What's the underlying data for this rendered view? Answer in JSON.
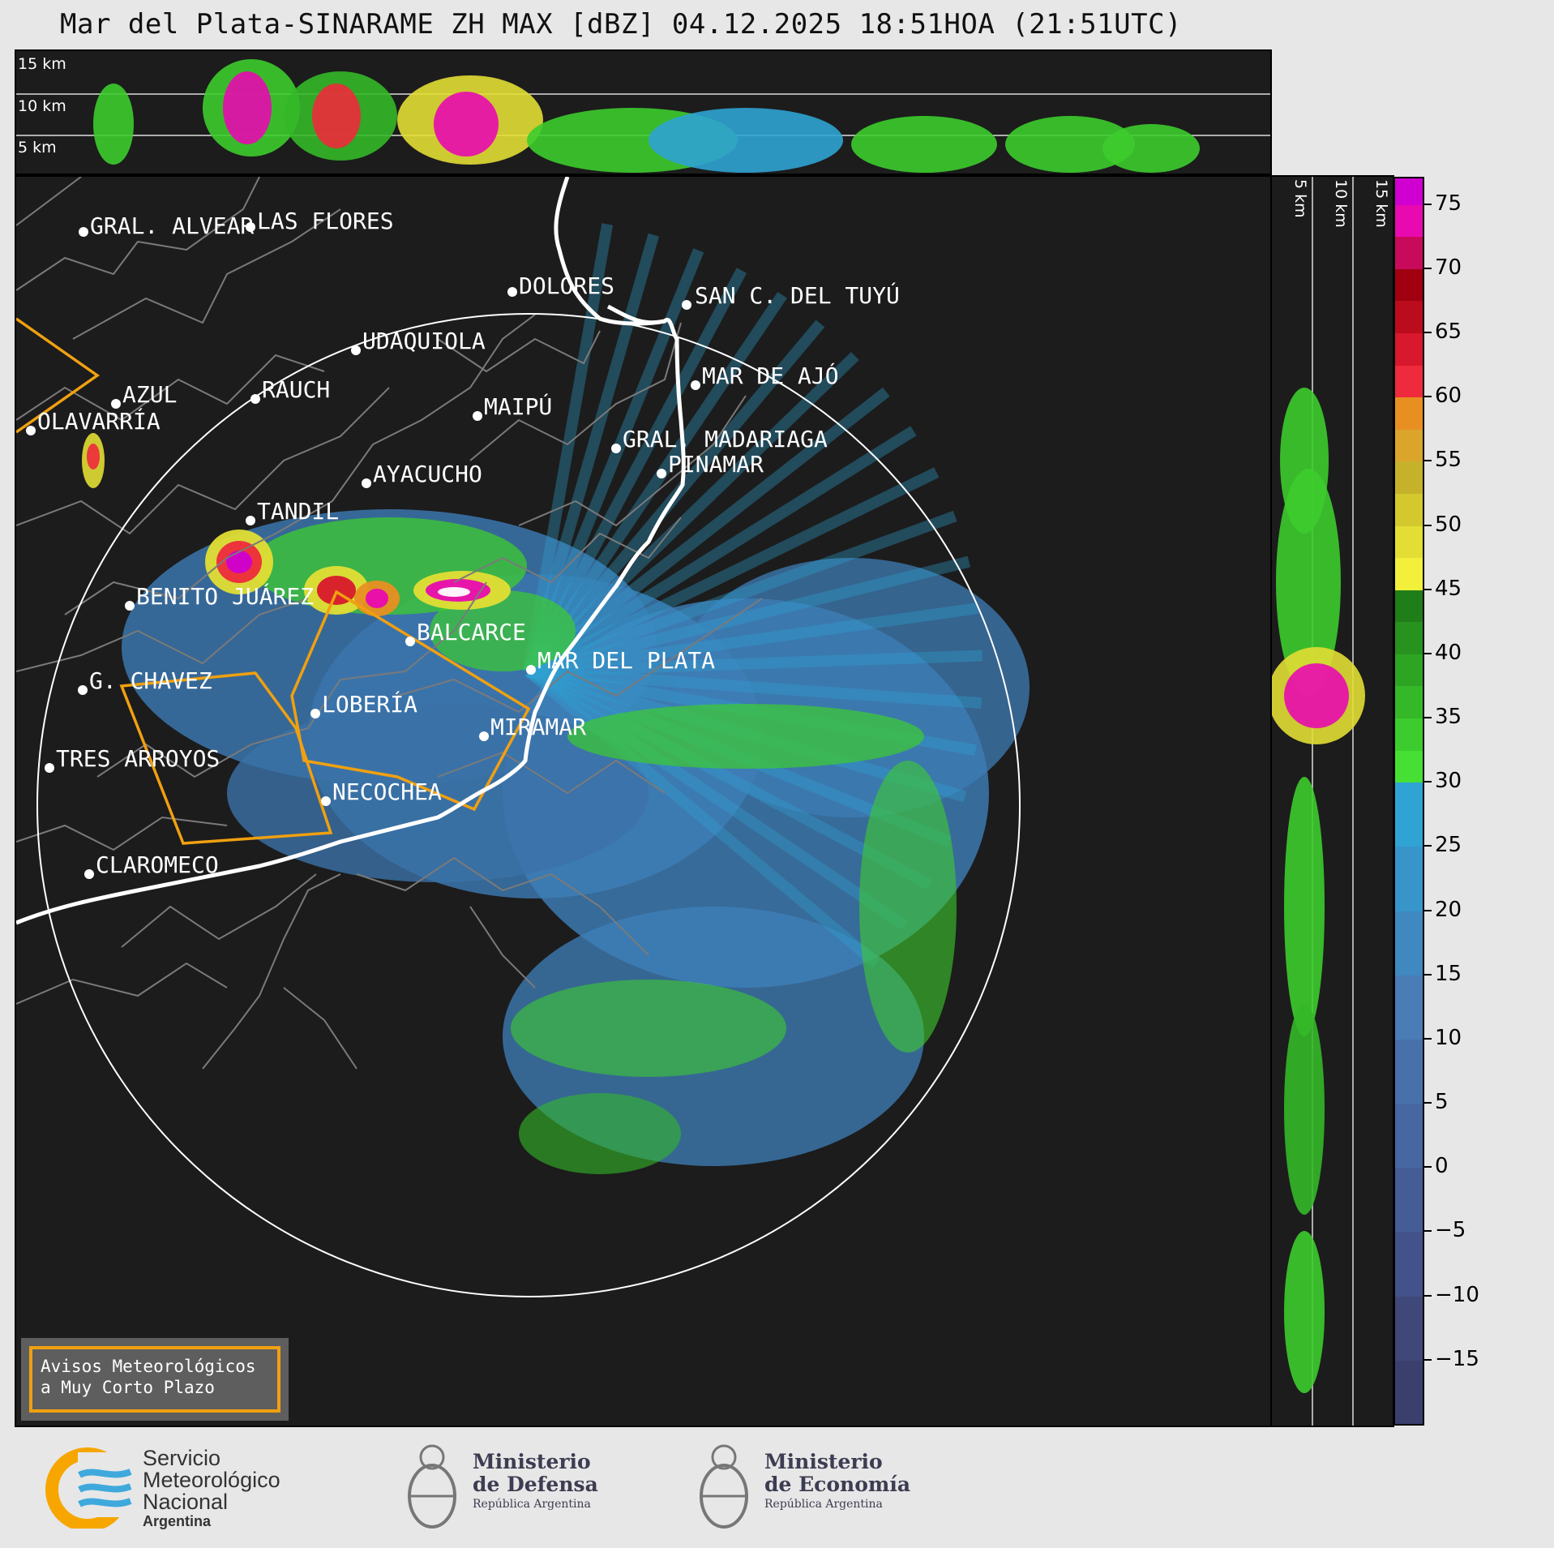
{
  "title": "Mar del Plata-SINARAME ZH MAX [dBZ] 04.12.2025 18:51HOA (21:51UTC)",
  "top_panel": {
    "height_labels": [
      "15 km",
      "10 km",
      "5 km"
    ]
  },
  "side_panel": {
    "height_labels": [
      "5 km",
      "10 km",
      "15 km"
    ]
  },
  "cities": [
    {
      "name": "GRAL. ALVEAR"
    },
    {
      "name": "LAS FLORES"
    },
    {
      "name": "DOLORES"
    },
    {
      "name": "SAN C. DEL TUYÚ"
    },
    {
      "name": "UDAQUIOLA"
    },
    {
      "name": "MAR DE AJÓ"
    },
    {
      "name": "AZUL"
    },
    {
      "name": "RAUCH"
    },
    {
      "name": "MAIPÚ"
    },
    {
      "name": "OLAVARRÍA"
    },
    {
      "name": "GRAL. MADARIAGA"
    },
    {
      "name": "PINAMAR"
    },
    {
      "name": "AYACUCHO"
    },
    {
      "name": "TANDIL"
    },
    {
      "name": "BENITO JUÁREZ"
    },
    {
      "name": "BALCARCE"
    },
    {
      "name": "MAR DEL PLATA"
    },
    {
      "name": "G. CHAVEZ"
    },
    {
      "name": "LOBERÍA"
    },
    {
      "name": "MIRAMAR"
    },
    {
      "name": "TRES ARROYOS"
    },
    {
      "name": "NECOCHEA"
    },
    {
      "name": "CLAROMECO"
    }
  ],
  "colorbar": {
    "unit": "dBZ",
    "ticks": [
      "75",
      "70",
      "65",
      "60",
      "55",
      "50",
      "45",
      "40",
      "35",
      "30",
      "25",
      "20",
      "15",
      "10",
      "5",
      "0",
      "−5",
      "−10",
      "−15"
    ],
    "range": [
      -20,
      77
    ]
  },
  "legend": {
    "line1": "Avisos Meteorológicos",
    "line2": "a Muy Corto Plazo"
  },
  "logos": {
    "smn": {
      "line1": "Servicio",
      "line2": "Meteorológico",
      "line3": "Nacional",
      "line4": "Argentina",
      "color_yellow": "#f7a600",
      "color_blue": "#3fa9dc"
    },
    "defensa": {
      "line1": "Ministerio",
      "line2": "de Defensa",
      "line3": "República Argentina"
    },
    "economia": {
      "line1": "Ministerio",
      "line2": "de Economía",
      "line3": "República Argentina"
    }
  }
}
